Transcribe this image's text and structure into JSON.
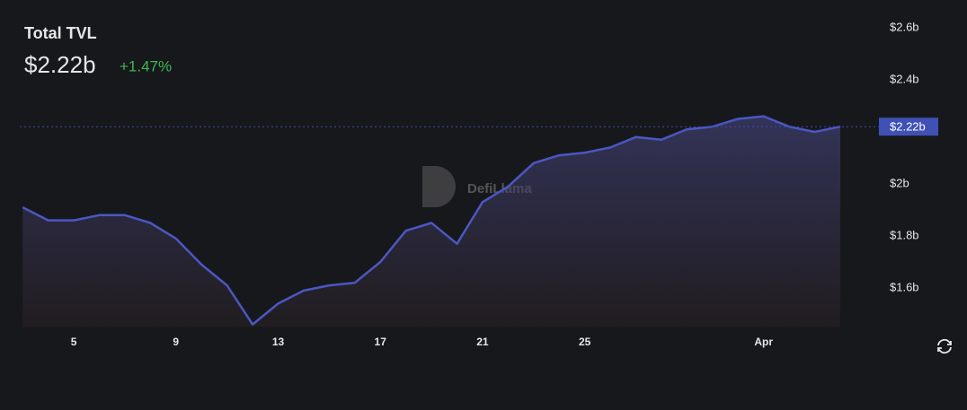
{
  "chart_data": {
    "type": "area",
    "title": "Total TVL",
    "current": {
      "value": 2.22,
      "label": "$2.22b"
    },
    "change": "+1.47%",
    "watermark": "DefiLlama",
    "categories": [
      null,
      null,
      "5",
      null,
      null,
      null,
      "9",
      null,
      null,
      null,
      "13",
      null,
      null,
      null,
      "17",
      null,
      null,
      null,
      "21",
      null,
      null,
      null,
      "25",
      null,
      null,
      null,
      null,
      null,
      null,
      "Apr",
      null,
      null,
      null
    ],
    "series": [
      {
        "name": "TVL",
        "color": "#4b57c2",
        "values": [
          1.91,
          1.86,
          1.86,
          1.88,
          1.88,
          1.85,
          1.79,
          1.69,
          1.61,
          1.46,
          1.54,
          1.59,
          1.61,
          1.62,
          1.7,
          1.82,
          1.85,
          1.77,
          1.93,
          1.99,
          2.08,
          2.11,
          2.12,
          2.14,
          2.18,
          2.17,
          2.21,
          2.22,
          2.25,
          2.26,
          2.22,
          2.2,
          2.22
        ]
      }
    ],
    "ylim": [
      1.45,
      2.65
    ],
    "yticks": [
      {
        "value": 1.6,
        "label": "$1.6b"
      },
      {
        "value": 1.8,
        "label": "$1.8b"
      },
      {
        "value": 2,
        "label": "$2b"
      },
      {
        "value": 2.4,
        "label": "$2.4b"
      },
      {
        "value": 2.6,
        "label": "$2.6b"
      }
    ]
  }
}
